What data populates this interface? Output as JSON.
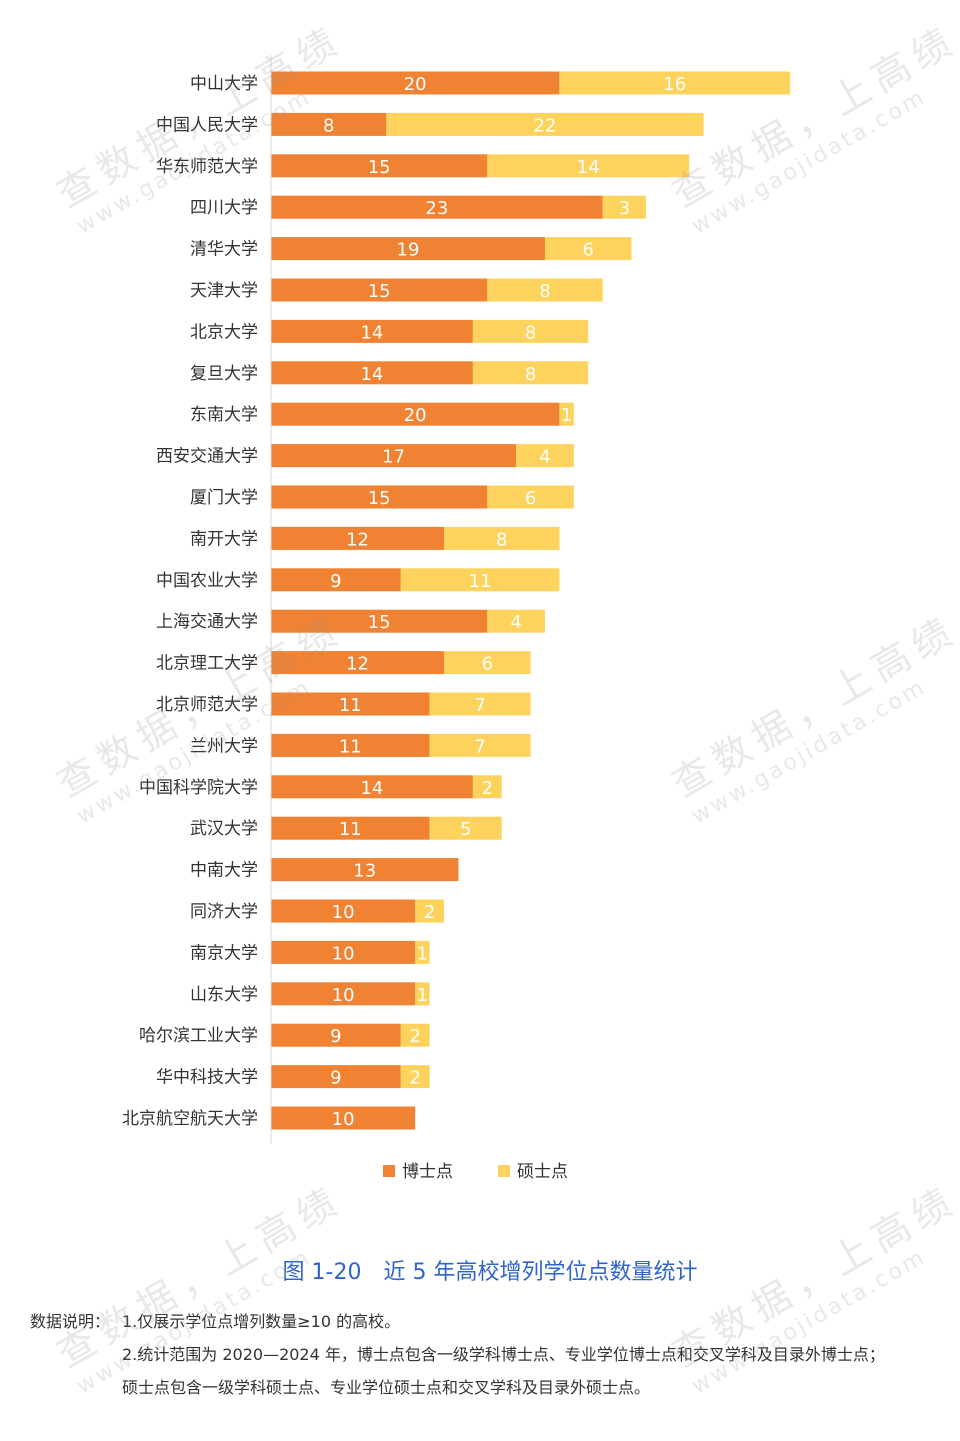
{
  "chart_data": {
    "type": "bar",
    "orientation": "horizontal",
    "stacked": true,
    "categories": [
      "中山大学",
      "中国人民大学",
      "华东师范大学",
      "四川大学",
      "清华大学",
      "天津大学",
      "北京大学",
      "复旦大学",
      "东南大学",
      "西安交通大学",
      "厦门大学",
      "南开大学",
      "中国农业大学",
      "上海交通大学",
      "北京理工大学",
      "北京师范大学",
      "兰州大学",
      "中国科学院大学",
      "武汉大学",
      "中南大学",
      "同济大学",
      "南京大学",
      "山东大学",
      "哈尔滨工业大学",
      "华中科技大学",
      "北京航空航天大学"
    ],
    "series": [
      {
        "name": "博士点",
        "color": "#ef8233",
        "values": [
          20,
          8,
          15,
          23,
          19,
          15,
          14,
          14,
          20,
          17,
          15,
          12,
          9,
          15,
          12,
          11,
          11,
          14,
          11,
          13,
          10,
          10,
          10,
          9,
          9,
          10
        ]
      },
      {
        "name": "硕士点",
        "color": "#fdd35e",
        "values": [
          16,
          22,
          14,
          3,
          6,
          8,
          8,
          8,
          1,
          4,
          6,
          8,
          11,
          4,
          6,
          7,
          7,
          2,
          5,
          0,
          2,
          1,
          1,
          2,
          2,
          0
        ]
      }
    ],
    "legend_position": "bottom",
    "grid": false,
    "xlim": [
      0,
      36
    ]
  },
  "caption": "图 1-20　近 5 年高校增列学位点数量统计",
  "notes": {
    "label": "数据说明：",
    "line1": "1.仅展示学位点增列数量≥10 的高校。",
    "line2": "2.统计范围为 2020—2024 年，博士点包含一级学科博士点、专业学位博士点和交叉学科及目录外博士点；",
    "line3": "硕士点包含一级学科硕士点、专业学位硕士点和交叉学科及目录外硕士点。"
  },
  "watermark": {
    "text": "查数据，上高绩",
    "url": "www.gaojidata.com"
  }
}
